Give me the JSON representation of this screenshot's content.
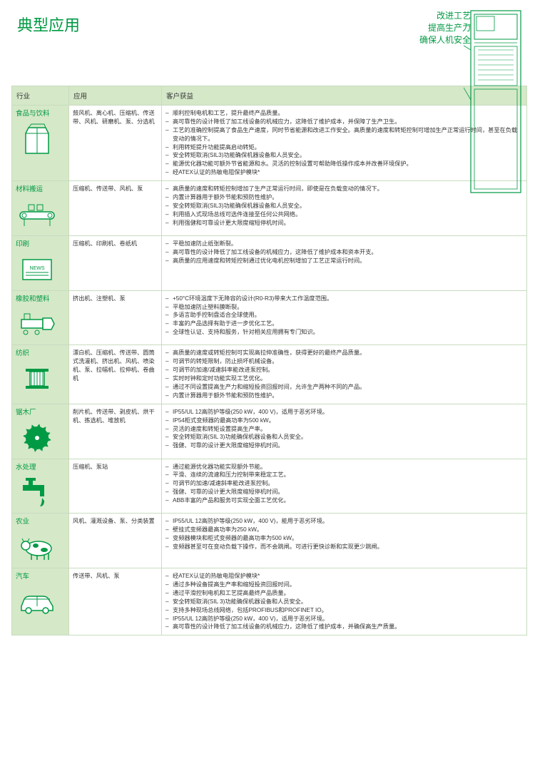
{
  "title": "典型应用",
  "topLabels": [
    "改进工艺",
    "提高生产力",
    "确保人机安全"
  ],
  "colors": {
    "brand": "#009a44",
    "headerBg": "#d5e8c8",
    "border": "#c8dcc0",
    "text": "#333333",
    "pageBg": "#ffffff"
  },
  "columns": [
    "行业",
    "应用",
    "客户获益"
  ],
  "rows": [
    {
      "industry": "食品与饮料",
      "icon": "carton",
      "apps": "鼓风机、离心机、压缩机、传送带、风机、研磨机、泵、分选机",
      "benefits": [
        "顺利控制电机和工艺，提升最终产品质量。",
        "高可靠性的设计降低了加工线设备的机械应力，这降低了维护成本，并保障了生产卫生。",
        "工艺的准确控制提高了食品生产速度，同时节省能源和改进工作安全。高质量的速度和转矩控制可增加生产正常运行时间，甚至在负载变动的情况下。",
        "利用转矩提升功能提高启动转矩。",
        "安全转矩取消(SIL3)功能确保机器设备和人员安全。",
        "能源优化器功能可额外节省能源和水。灵活的控制设置可帮助降低操作成本并改善环境保护。",
        "经ATEX认证的热敏电阻保护模块*"
      ]
    },
    {
      "industry": "材料搬运",
      "icon": "conveyor",
      "apps": "压缩机、传送带、风机、泵",
      "benefits": [
        "高质量的速度和转矩控制增加了生产正常运行时间，即使是在负载变动的情况下。",
        "内置计算器用于额外节能和预防性维护。",
        "安全转矩取消(SIL3)功能确保机器设备和人员安全。",
        "利用插入式现场总线可选件连接至任何公共网络。",
        "利用强健和可靠设计更大限度缩短停机时间。"
      ]
    },
    {
      "industry": "印刷",
      "icon": "press",
      "apps": "压缩机、印刷机、卷纸机",
      "benefits": [
        "平稳加速防止纸张断裂。",
        "高可靠性的设计降低了加工线设备的机械应力，这降低了维护成本和资本开支。",
        "高质量的应用速度和转矩控制通过优化电机控制增加了工艺正常运行时间。"
      ]
    },
    {
      "industry": "橡胶和塑料",
      "icon": "extruder",
      "apps": "挤出机、注塑机、泵",
      "benefits": [
        "+50°C环境温度下无降容的设计(R0-R3)带来大工作温度范围。",
        "平稳加速防止塑料膜断裂。",
        "多语言助手控制盘适合全球使用。",
        "丰富的产品选择有助于进一步优化工艺。",
        "全球性认证、支持和服务，针对相关应用拥有专门知识。"
      ]
    },
    {
      "industry": "纺织",
      "icon": "spool",
      "apps": "漂白机、压缩机、传送带、圆筒式洗灌机、挤出机、风机、喷染机、泵、拉幅机、拉伸机、卷曲机",
      "benefits": [
        "高质量的速度或转矩控制可实现高拉伸准确性，获得更好的最终产品质量。",
        "可调节的转矩限制，防止损坏机械设备。",
        "可调节的加速/减速斜率能改进泵控制。",
        "实时时钟和定时功能实现工艺优化。",
        "通过不同设置提高生产力和缩短投资回报时间，允许生产两种不同的产品。",
        "内置计算器用于额外节能和预防性维护。"
      ]
    },
    {
      "industry": "锯木厂",
      "icon": "sawblade",
      "apps": "削片机、传送带、剥皮机、烘干机、拣选机、堆放机",
      "benefits": [
        "IP55/UL 12高防护等级(250 kW，400 V)，适用于恶劣环境。",
        "IP54柜式变频器的最高功率为500 kW。",
        "灵活的速度和转矩设置提高生产率。",
        "安全转矩取消(SIL 3)功能确保机器设备和人员安全。",
        "强健、可靠的设计更大限度缩短停机时间。"
      ]
    },
    {
      "industry": "水处理",
      "icon": "faucet",
      "apps": "压缩机、泵站",
      "benefits": [
        "通过能源优化器功能实现额外节能。",
        "平滑、连续的流速和压力控制带来稳定工艺。",
        "可调节的加速/减速斜率能改进泵控制。",
        "强健、可靠的设计更大限度缩短停机时间。",
        "ABB丰富的产品和服务可实现全面工艺优化。"
      ]
    },
    {
      "industry": "农业",
      "icon": "cow",
      "apps": "风机、灌溉设备、泵、分类装置",
      "benefits": [
        "IP55/UL 12高防护等级(250 kW，400 V)，能用于恶劣环境。",
        "壁挂式变频器最高功率为250 kW。",
        "变频器模块和柜式变频器的最高功率为500 kW。",
        "变频器甚至可在变动负载下操作，而不会跳闸。可进行更快诊断和实现更少跳闸。"
      ]
    },
    {
      "industry": "汽车",
      "icon": "car",
      "apps": "传送带、风机、泵",
      "benefits": [
        "经ATEX认证的热敏电阻保护模块*",
        "通过多种设备提高生产率和缩短投资回报时间。",
        "通过平滑控制电机和工艺提高最终产品质量。",
        "安全转矩取消(SIL 3)功能确保机器设备和人员安全。",
        "支持多种现场总线网络，包括PROFIBUS和PROFINET IO。",
        "IP55/UL 12高防护等级(250 kW，400 V)，适用于恶劣环境。",
        "高可靠性的设计降低了加工线设备的机械应力，这降低了维护成本，并确保高生产质量。"
      ]
    }
  ]
}
